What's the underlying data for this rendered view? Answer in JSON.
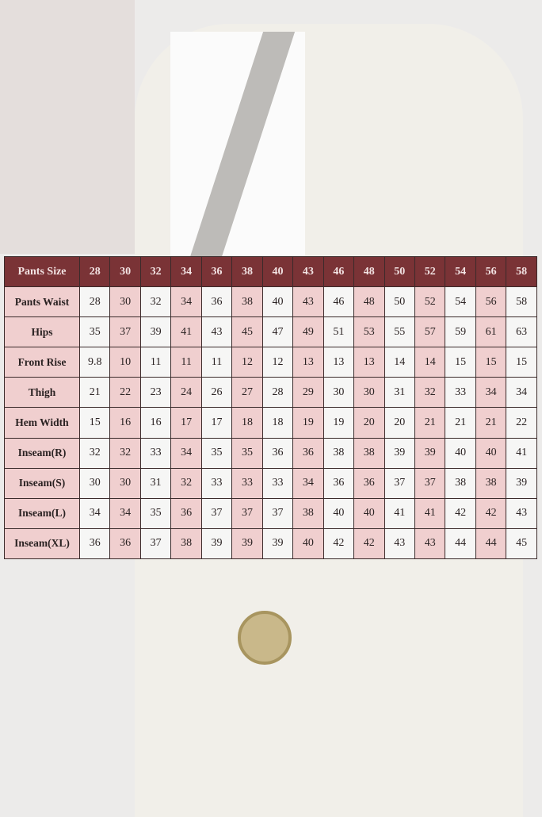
{
  "size_chart": {
    "header": [
      "Pants Size",
      "28",
      "30",
      "32",
      "34",
      "36",
      "38",
      "40",
      "43",
      "46",
      "48",
      "50",
      "52",
      "54",
      "56",
      "58"
    ],
    "rows": [
      {
        "label": "Pants Waist",
        "values": [
          "28",
          "30",
          "32",
          "34",
          "36",
          "38",
          "40",
          "43",
          "46",
          "48",
          "50",
          "52",
          "54",
          "56",
          "58"
        ]
      },
      {
        "label": "Hips",
        "values": [
          "35",
          "37",
          "39",
          "41",
          "43",
          "45",
          "47",
          "49",
          "51",
          "53",
          "55",
          "57",
          "59",
          "61",
          "63"
        ]
      },
      {
        "label": "Front Rise",
        "values": [
          "9.8",
          "10",
          "11",
          "11",
          "11",
          "12",
          "12",
          "13",
          "13",
          "13",
          "14",
          "14",
          "15",
          "15",
          "15"
        ]
      },
      {
        "label": "Thigh",
        "values": [
          "21",
          "22",
          "23",
          "24",
          "26",
          "27",
          "28",
          "29",
          "30",
          "30",
          "31",
          "32",
          "33",
          "34",
          "34"
        ]
      },
      {
        "label": "Hem Width",
        "values": [
          "15",
          "16",
          "16",
          "17",
          "17",
          "18",
          "18",
          "19",
          "19",
          "20",
          "20",
          "21",
          "21",
          "21",
          "22"
        ]
      },
      {
        "label": "Inseam(R)",
        "values": [
          "32",
          "32",
          "33",
          "34",
          "35",
          "35",
          "36",
          "36",
          "38",
          "38",
          "39",
          "39",
          "40",
          "40",
          "41"
        ]
      },
      {
        "label": "Inseam(S)",
        "values": [
          "30",
          "30",
          "31",
          "32",
          "33",
          "33",
          "33",
          "34",
          "36",
          "36",
          "37",
          "37",
          "38",
          "38",
          "39"
        ]
      },
      {
        "label": "Inseam(L)",
        "values": [
          "34",
          "34",
          "35",
          "36",
          "37",
          "37",
          "37",
          "38",
          "40",
          "40",
          "41",
          "41",
          "42",
          "42",
          "43"
        ]
      },
      {
        "label": "Inseam(XL)",
        "values": [
          "36",
          "36",
          "37",
          "38",
          "39",
          "39",
          "39",
          "40",
          "42",
          "42",
          "43",
          "43",
          "44",
          "44",
          "45"
        ]
      }
    ]
  },
  "colors": {
    "header": "#7a3336",
    "pink": "#f0cfcf",
    "white": "#f6f6f5"
  }
}
